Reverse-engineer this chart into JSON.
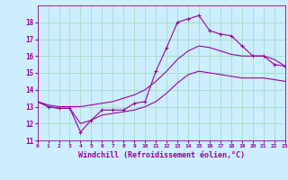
{
  "xlabel": "Windchill (Refroidissement éolien,°C)",
  "ylabel": "",
  "bg_color": "#cceeff",
  "grid_color": "#aaddcc",
  "line_color": "#990099",
  "hours": [
    0,
    1,
    2,
    3,
    4,
    5,
    6,
    7,
    8,
    9,
    10,
    11,
    12,
    13,
    14,
    15,
    16,
    17,
    18,
    19,
    20,
    21,
    22,
    23
  ],
  "actual": [
    13.3,
    13.0,
    12.9,
    12.9,
    11.5,
    12.2,
    12.8,
    12.8,
    12.8,
    13.2,
    13.3,
    15.1,
    16.5,
    18.0,
    18.2,
    18.4,
    17.5,
    17.3,
    17.2,
    16.6,
    16.0,
    16.0,
    15.5,
    15.4
  ],
  "smooth_upper": [
    13.3,
    13.1,
    13.0,
    13.0,
    13.0,
    13.1,
    13.2,
    13.3,
    13.5,
    13.7,
    14.0,
    14.5,
    15.1,
    15.8,
    16.3,
    16.6,
    16.5,
    16.3,
    16.1,
    16.0,
    16.0,
    16.0,
    15.8,
    15.4
  ],
  "smooth_lower": [
    13.3,
    13.0,
    12.9,
    12.9,
    12.0,
    12.2,
    12.5,
    12.6,
    12.7,
    12.8,
    13.0,
    13.3,
    13.8,
    14.4,
    14.9,
    15.1,
    15.0,
    14.9,
    14.8,
    14.7,
    14.7,
    14.7,
    14.6,
    14.5
  ],
  "ylim": [
    11,
    19
  ],
  "xlim": [
    0,
    23
  ],
  "yticks": [
    11,
    12,
    13,
    14,
    15,
    16,
    17,
    18
  ],
  "xticks": [
    0,
    1,
    2,
    3,
    4,
    5,
    6,
    7,
    8,
    9,
    10,
    11,
    12,
    13,
    14,
    15,
    16,
    17,
    18,
    19,
    20,
    21,
    22,
    23
  ]
}
